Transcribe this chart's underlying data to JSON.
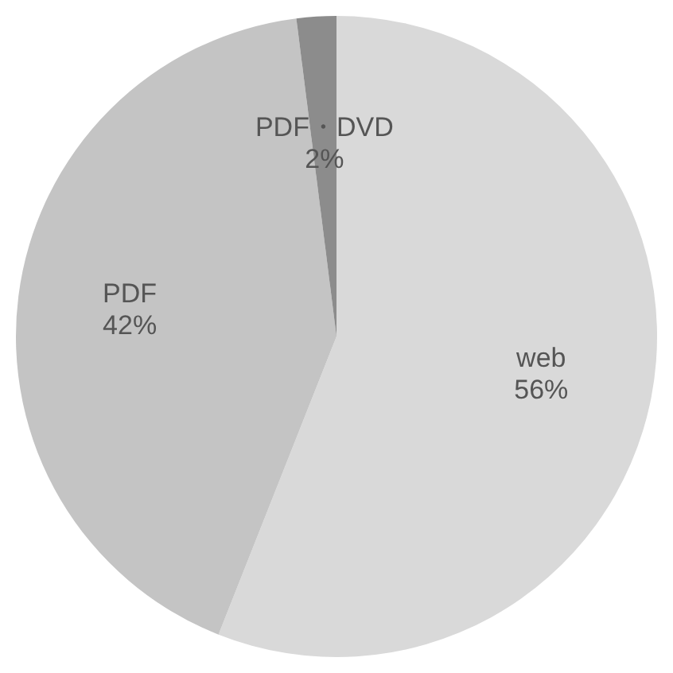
{
  "chart_data": {
    "type": "pie",
    "categories": [
      "web",
      "PDF",
      "PDF・DVD"
    ],
    "values": [
      56,
      42,
      2
    ],
    "value_labels": [
      "56%",
      "42%",
      "2%"
    ],
    "colors": [
      "#d9d9d9",
      "#c4c4c4",
      "#8c8c8c"
    ]
  }
}
